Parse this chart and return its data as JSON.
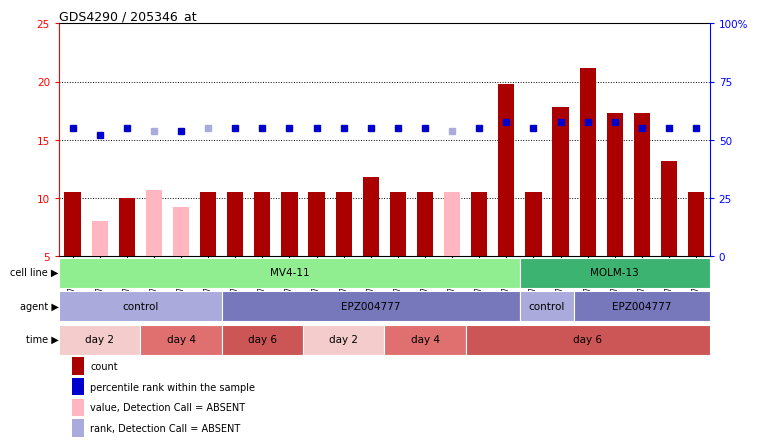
{
  "title": "GDS4290 / 205346_at",
  "samples": [
    "GSM739151",
    "GSM739152",
    "GSM739153",
    "GSM739157",
    "GSM739158",
    "GSM739159",
    "GSM739163",
    "GSM739164",
    "GSM739165",
    "GSM739148",
    "GSM739149",
    "GSM739150",
    "GSM739154",
    "GSM739155",
    "GSM739156",
    "GSM739160",
    "GSM739161",
    "GSM739162",
    "GSM739169",
    "GSM739170",
    "GSM739171",
    "GSM739166",
    "GSM739167",
    "GSM739168"
  ],
  "count_values": [
    10.5,
    8.0,
    10.0,
    10.7,
    9.2,
    10.5,
    10.5,
    10.5,
    10.5,
    10.5,
    10.5,
    11.8,
    10.5,
    10.5,
    10.5,
    10.5,
    19.8,
    10.5,
    17.8,
    21.2,
    17.3,
    17.3,
    13.2,
    10.5
  ],
  "count_absent": [
    false,
    true,
    false,
    true,
    true,
    false,
    false,
    false,
    false,
    false,
    false,
    false,
    false,
    false,
    true,
    false,
    false,
    false,
    false,
    false,
    false,
    false,
    false,
    false
  ],
  "rank_values": [
    16.0,
    15.4,
    16.0,
    15.8,
    15.8,
    16.0,
    16.0,
    16.0,
    16.0,
    16.0,
    16.0,
    16.0,
    16.0,
    16.0,
    15.8,
    16.0,
    16.5,
    16.0,
    16.5,
    16.5,
    16.5,
    16.0,
    16.0,
    16.0
  ],
  "rank_absent": [
    false,
    false,
    false,
    true,
    false,
    true,
    false,
    false,
    false,
    false,
    false,
    false,
    false,
    false,
    true,
    false,
    false,
    false,
    false,
    false,
    false,
    false,
    false,
    false
  ],
  "cell_line_spans": [
    {
      "label": "MV4-11",
      "start": 0,
      "end": 17,
      "color": "#90EE90"
    },
    {
      "label": "MOLM-13",
      "start": 17,
      "end": 24,
      "color": "#3CB371"
    }
  ],
  "agent_spans": [
    {
      "label": "control",
      "start": 0,
      "end": 6,
      "color": "#AAAADD"
    },
    {
      "label": "EPZ004777",
      "start": 6,
      "end": 17,
      "color": "#7777BB"
    },
    {
      "label": "control",
      "start": 17,
      "end": 19,
      "color": "#AAAADD"
    },
    {
      "label": "EPZ004777",
      "start": 19,
      "end": 24,
      "color": "#7777BB"
    }
  ],
  "time_spans": [
    {
      "label": "day 2",
      "start": 0,
      "end": 3,
      "color": "#F4CCCC"
    },
    {
      "label": "day 4",
      "start": 3,
      "end": 6,
      "color": "#E07070"
    },
    {
      "label": "day 6",
      "start": 6,
      "end": 9,
      "color": "#CC5555"
    },
    {
      "label": "day 2",
      "start": 9,
      "end": 12,
      "color": "#F4CCCC"
    },
    {
      "label": "day 4",
      "start": 12,
      "end": 15,
      "color": "#E07070"
    },
    {
      "label": "day 6",
      "start": 15,
      "end": 24,
      "color": "#CC5555"
    }
  ],
  "ylim_left": [
    5,
    25
  ],
  "ylim_right": [
    0,
    100
  ],
  "yticks_left": [
    5,
    10,
    15,
    20,
    25
  ],
  "yticks_right": [
    0,
    25,
    50,
    75,
    100
  ],
  "color_present": "#AA0000",
  "color_absent": "#FFB6C1",
  "color_rank_present": "#0000CC",
  "color_rank_absent": "#AAAADD",
  "bar_width": 0.6,
  "annotation_labels": [
    "cell line",
    "agent",
    "time"
  ],
  "grid_lines": [
    10,
    15,
    20
  ]
}
